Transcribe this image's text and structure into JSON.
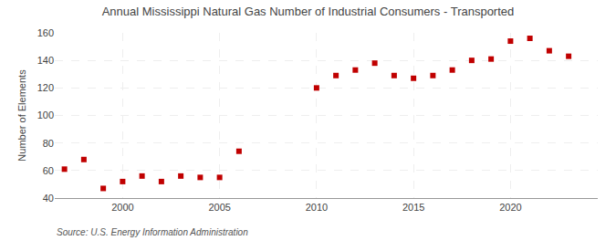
{
  "chart_data": {
    "type": "scatter",
    "title": "Annual Mississippi Natural Gas Number of Industrial Consumers - Transported",
    "y_label": "Number of Elements",
    "annotations": [
      "Source: U.S. Energy Information Administration"
    ],
    "x": [
      1997,
      1998,
      1999,
      2000,
      2001,
      2002,
      2003,
      2004,
      2005,
      2006,
      2010,
      2011,
      2012,
      2013,
      2014,
      2015,
      2016,
      2017,
      2018,
      2019,
      2020,
      2021,
      2022,
      2023
    ],
    "values": [
      61,
      68,
      47,
      52,
      56,
      52,
      56,
      55,
      55,
      74,
      120,
      129,
      133,
      138,
      129,
      127,
      129,
      133,
      140,
      141,
      154,
      156,
      147,
      143
    ],
    "color": "#C00000",
    "marker": "square",
    "xlim": [
      1996.5,
      2024.5
    ],
    "xticks": [
      2000,
      2005,
      2010,
      2015,
      2020
    ],
    "ylim": [
      40,
      160
    ],
    "yticks": [
      40,
      60,
      80,
      100,
      120,
      140,
      160
    ],
    "grid": true
  }
}
